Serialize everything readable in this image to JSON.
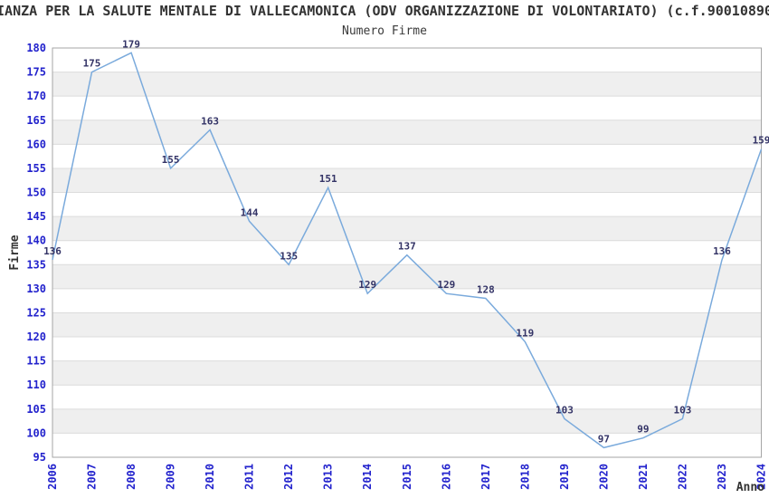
{
  "page": {
    "title": "IANZA PER LA SALUTE MENTALE DI VALLECAMONICA (ODV ORGANIZZAZIONE DI VOLONTARIATO) (c.f.90010890"
  },
  "chart_data": {
    "type": "line",
    "title": "Numero Firme",
    "xlabel": "Anno",
    "ylabel": "Firme",
    "x": [
      "2006",
      "2007",
      "2008",
      "2009",
      "2010",
      "2011",
      "2012",
      "2013",
      "2014",
      "2015",
      "2016",
      "2017",
      "2018",
      "2019",
      "2020",
      "2021",
      "2022",
      "2023",
      "2024"
    ],
    "values": [
      136,
      175,
      179,
      155,
      163,
      144,
      135,
      151,
      129,
      137,
      129,
      128,
      119,
      103,
      97,
      99,
      103,
      136,
      159
    ],
    "ylim": [
      95,
      180
    ],
    "ytick_step": 5,
    "grid": true,
    "legend": "none",
    "band_fill_rule": "gray band between each multiple of 10 and +5",
    "colors": {
      "line": "#7AAADC",
      "axis_tick_label": "#2323CD",
      "data_label": "#333366",
      "band_gray": "#EFEFEF",
      "gridline": "#DCDCDC",
      "plot_border": "#A6A6A6",
      "text": "#333333",
      "background": "#FFFFFF"
    }
  }
}
